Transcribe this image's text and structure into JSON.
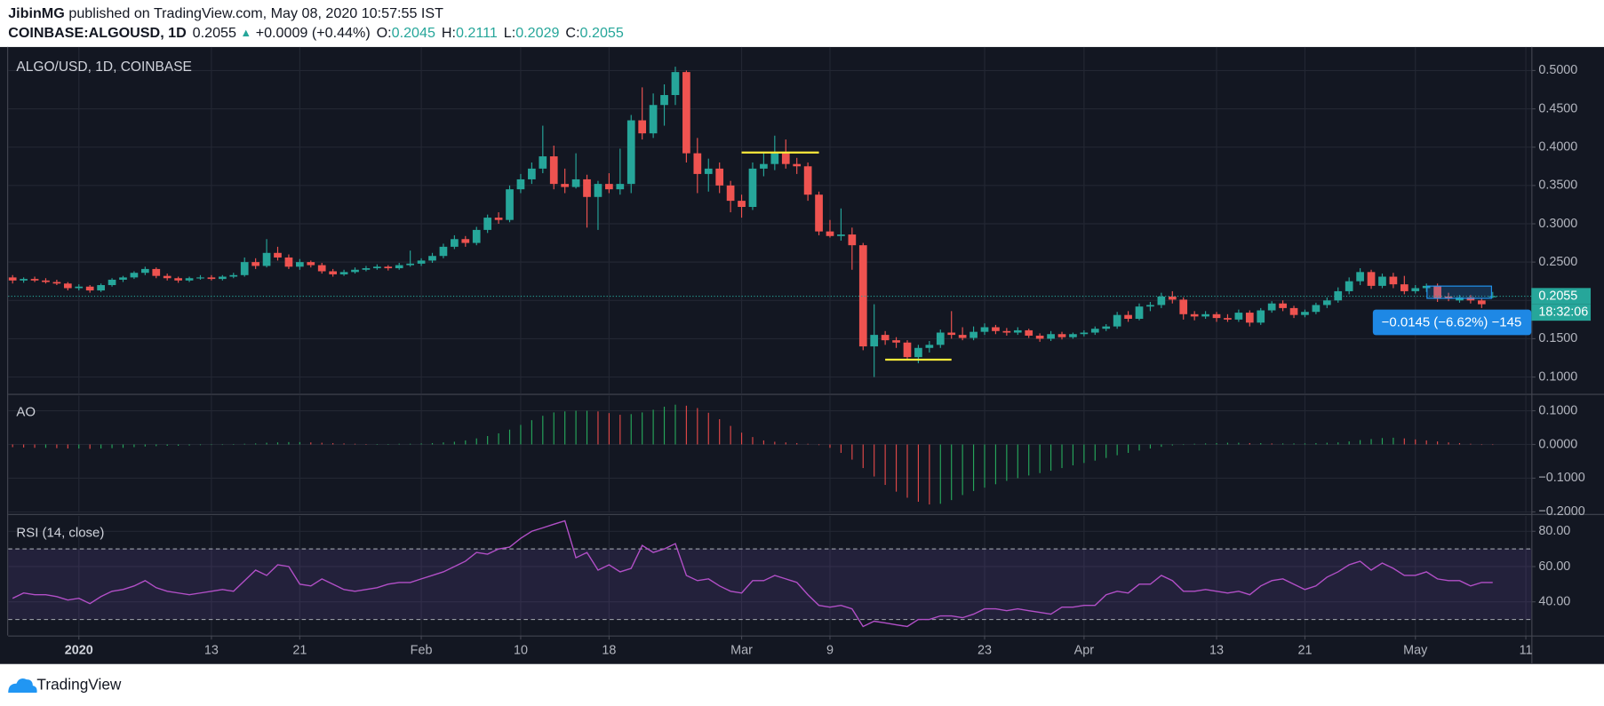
{
  "header": {
    "author": "JibinMG",
    "published": "published on TradingView.com, May 08, 2020 10:57:55 IST",
    "symbol": "COINBASE:ALGOUSD, 1D",
    "arrow": "▲",
    "change": "+0.0009 (+0.44%)",
    "o": "O:",
    "h": "H:",
    "l": "L:",
    "c": "C:"
  },
  "chart_data": [
    {
      "type": "candlestick",
      "title": "ALGO/USD, 1D, COINBASE",
      "up_color": "#26a69a",
      "down_color": "#ef5350",
      "grid": true,
      "candles": [
        [
          0.23,
          0.233,
          0.222,
          0.226
        ],
        [
          0.226,
          0.23,
          0.223,
          0.228
        ],
        [
          0.228,
          0.231,
          0.224,
          0.226
        ],
        [
          0.226,
          0.229,
          0.222,
          0.224
        ],
        [
          0.224,
          0.227,
          0.22,
          0.222
        ],
        [
          0.222,
          0.224,
          0.213,
          0.216
        ],
        [
          0.216,
          0.221,
          0.213,
          0.218
        ],
        [
          0.218,
          0.22,
          0.21,
          0.213
        ],
        [
          0.213,
          0.222,
          0.211,
          0.22
        ],
        [
          0.22,
          0.229,
          0.218,
          0.227
        ],
        [
          0.227,
          0.232,
          0.224,
          0.23
        ],
        [
          0.23,
          0.238,
          0.228,
          0.236
        ],
        [
          0.236,
          0.244,
          0.233,
          0.241
        ],
        [
          0.241,
          0.243,
          0.229,
          0.232
        ],
        [
          0.232,
          0.235,
          0.226,
          0.229
        ],
        [
          0.229,
          0.231,
          0.223,
          0.226
        ],
        [
          0.226,
          0.231,
          0.224,
          0.229
        ],
        [
          0.229,
          0.233,
          0.227,
          0.23
        ],
        [
          0.23,
          0.233,
          0.226,
          0.228
        ],
        [
          0.228,
          0.233,
          0.226,
          0.231
        ],
        [
          0.231,
          0.236,
          0.229,
          0.233
        ],
        [
          0.233,
          0.256,
          0.231,
          0.25
        ],
        [
          0.25,
          0.255,
          0.241,
          0.245
        ],
        [
          0.245,
          0.28,
          0.243,
          0.262
        ],
        [
          0.262,
          0.27,
          0.252,
          0.256
        ],
        [
          0.256,
          0.26,
          0.241,
          0.244
        ],
        [
          0.244,
          0.254,
          0.24,
          0.25
        ],
        [
          0.25,
          0.252,
          0.243,
          0.246
        ],
        [
          0.246,
          0.249,
          0.235,
          0.238
        ],
        [
          0.238,
          0.241,
          0.231,
          0.234
        ],
        [
          0.234,
          0.24,
          0.232,
          0.237
        ],
        [
          0.237,
          0.243,
          0.235,
          0.24
        ],
        [
          0.24,
          0.245,
          0.238,
          0.242
        ],
        [
          0.242,
          0.247,
          0.24,
          0.244
        ],
        [
          0.244,
          0.246,
          0.239,
          0.242
        ],
        [
          0.242,
          0.249,
          0.24,
          0.246
        ],
        [
          0.246,
          0.265,
          0.244,
          0.248
        ],
        [
          0.248,
          0.255,
          0.245,
          0.252
        ],
        [
          0.252,
          0.262,
          0.249,
          0.258
        ],
        [
          0.258,
          0.274,
          0.255,
          0.27
        ],
        [
          0.27,
          0.285,
          0.267,
          0.28
        ],
        [
          0.28,
          0.284,
          0.27,
          0.275
        ],
        [
          0.275,
          0.296,
          0.272,
          0.292
        ],
        [
          0.292,
          0.312,
          0.288,
          0.308
        ],
        [
          0.308,
          0.315,
          0.3,
          0.305
        ],
        [
          0.305,
          0.35,
          0.302,
          0.345
        ],
        [
          0.345,
          0.365,
          0.34,
          0.358
        ],
        [
          0.358,
          0.38,
          0.352,
          0.372
        ],
        [
          0.372,
          0.428,
          0.366,
          0.388
        ],
        [
          0.388,
          0.402,
          0.345,
          0.352
        ],
        [
          0.352,
          0.372,
          0.34,
          0.348
        ],
        [
          0.348,
          0.392,
          0.346,
          0.358
        ],
        [
          0.358,
          0.364,
          0.295,
          0.335
        ],
        [
          0.335,
          0.356,
          0.292,
          0.352
        ],
        [
          0.352,
          0.366,
          0.34,
          0.345
        ],
        [
          0.345,
          0.398,
          0.338,
          0.352
        ],
        [
          0.352,
          0.442,
          0.34,
          0.435
        ],
        [
          0.435,
          0.478,
          0.41,
          0.418
        ],
        [
          0.418,
          0.47,
          0.412,
          0.455
        ],
        [
          0.455,
          0.482,
          0.428,
          0.468
        ],
        [
          0.468,
          0.505,
          0.455,
          0.498
        ],
        [
          0.498,
          0.5,
          0.38,
          0.392
        ],
        [
          0.392,
          0.412,
          0.34,
          0.365
        ],
        [
          0.365,
          0.385,
          0.342,
          0.372
        ],
        [
          0.372,
          0.38,
          0.34,
          0.35
        ],
        [
          0.35,
          0.356,
          0.315,
          0.33
        ],
        [
          0.33,
          0.338,
          0.308,
          0.322
        ],
        [
          0.322,
          0.38,
          0.318,
          0.372
        ],
        [
          0.372,
          0.392,
          0.362,
          0.378
        ],
        [
          0.378,
          0.415,
          0.37,
          0.392
        ],
        [
          0.392,
          0.41,
          0.372,
          0.378
        ],
        [
          0.378,
          0.386,
          0.365,
          0.375
        ],
        [
          0.375,
          0.38,
          0.33,
          0.338
        ],
        [
          0.338,
          0.342,
          0.285,
          0.29
        ],
        [
          0.29,
          0.305,
          0.282,
          0.284
        ],
        [
          0.284,
          0.32,
          0.278,
          0.286
        ],
        [
          0.286,
          0.295,
          0.24,
          0.272
        ],
        [
          0.272,
          0.275,
          0.135,
          0.14
        ],
        [
          0.14,
          0.195,
          0.1,
          0.155
        ],
        [
          0.155,
          0.16,
          0.142,
          0.148
        ],
        [
          0.148,
          0.152,
          0.138,
          0.145
        ],
        [
          0.145,
          0.148,
          0.122,
          0.126
        ],
        [
          0.126,
          0.142,
          0.118,
          0.138
        ],
        [
          0.138,
          0.147,
          0.132,
          0.142
        ],
        [
          0.142,
          0.162,
          0.138,
          0.158
        ],
        [
          0.158,
          0.186,
          0.15,
          0.155
        ],
        [
          0.155,
          0.165,
          0.148,
          0.151
        ],
        [
          0.151,
          0.166,
          0.148,
          0.159
        ],
        [
          0.159,
          0.17,
          0.155,
          0.165
        ],
        [
          0.165,
          0.168,
          0.156,
          0.16
        ],
        [
          0.16,
          0.164,
          0.154,
          0.158
        ],
        [
          0.158,
          0.165,
          0.155,
          0.161
        ],
        [
          0.161,
          0.163,
          0.151,
          0.154
        ],
        [
          0.154,
          0.157,
          0.146,
          0.15
        ],
        [
          0.15,
          0.16,
          0.147,
          0.156
        ],
        [
          0.156,
          0.159,
          0.149,
          0.152
        ],
        [
          0.152,
          0.158,
          0.15,
          0.156
        ],
        [
          0.156,
          0.161,
          0.153,
          0.158
        ],
        [
          0.158,
          0.166,
          0.155,
          0.163
        ],
        [
          0.163,
          0.169,
          0.16,
          0.166
        ],
        [
          0.166,
          0.185,
          0.163,
          0.181
        ],
        [
          0.181,
          0.186,
          0.172,
          0.176
        ],
        [
          0.176,
          0.196,
          0.174,
          0.192
        ],
        [
          0.192,
          0.198,
          0.186,
          0.194
        ],
        [
          0.194,
          0.21,
          0.19,
          0.205
        ],
        [
          0.205,
          0.212,
          0.196,
          0.201
        ],
        [
          0.201,
          0.204,
          0.175,
          0.182
        ],
        [
          0.182,
          0.186,
          0.174,
          0.179
        ],
        [
          0.179,
          0.186,
          0.176,
          0.182
        ],
        [
          0.182,
          0.185,
          0.172,
          0.177
        ],
        [
          0.177,
          0.182,
          0.172,
          0.175
        ],
        [
          0.175,
          0.188,
          0.172,
          0.184
        ],
        [
          0.184,
          0.187,
          0.166,
          0.171
        ],
        [
          0.171,
          0.19,
          0.168,
          0.187
        ],
        [
          0.187,
          0.199,
          0.184,
          0.196
        ],
        [
          0.196,
          0.2,
          0.186,
          0.19
        ],
        [
          0.19,
          0.193,
          0.177,
          0.181
        ],
        [
          0.181,
          0.188,
          0.178,
          0.185
        ],
        [
          0.185,
          0.197,
          0.182,
          0.194
        ],
        [
          0.194,
          0.204,
          0.19,
          0.2
        ],
        [
          0.2,
          0.217,
          0.197,
          0.212
        ],
        [
          0.212,
          0.23,
          0.208,
          0.225
        ],
        [
          0.225,
          0.242,
          0.22,
          0.237
        ],
        [
          0.237,
          0.24,
          0.215,
          0.219
        ],
        [
          0.219,
          0.235,
          0.216,
          0.231
        ],
        [
          0.231,
          0.236,
          0.216,
          0.221
        ],
        [
          0.221,
          0.232,
          0.208,
          0.212
        ],
        [
          0.212,
          0.22,
          0.209,
          0.216
        ],
        [
          0.216,
          0.222,
          0.211,
          0.219
        ],
        [
          0.219,
          0.222,
          0.198,
          0.202
        ],
        [
          0.205,
          0.21,
          0.199,
          0.203
        ],
        [
          0.2,
          0.207,
          0.197,
          0.204
        ],
        [
          0.204,
          0.207,
          0.196,
          0.2
        ],
        [
          0.2,
          0.203,
          0.19,
          0.195
        ],
        [
          0.2045,
          0.2111,
          0.2029,
          0.2055
        ]
      ],
      "ylim": [
        0.0787,
        0.5307
      ],
      "yticks": [
        {
          "value": 0.1,
          "label": "0.1000"
        },
        {
          "value": 0.15,
          "label": "0.1500"
        },
        {
          "value": 0.2,
          "label": "0.2000"
        },
        {
          "value": 0.25,
          "label": "0.2500"
        },
        {
          "value": 0.3,
          "label": "0.3000"
        },
        {
          "value": 0.35,
          "label": "0.3500"
        },
        {
          "value": 0.4,
          "label": "0.4000"
        },
        {
          "value": 0.45,
          "label": "0.4500"
        },
        {
          "value": 0.5,
          "label": "0.5000"
        }
      ],
      "xlim": [
        -0.4,
        137.5
      ],
      "xticks": [
        {
          "value": 6,
          "label": "2020"
        },
        {
          "value": 18,
          "label": "13"
        },
        {
          "value": 26,
          "label": "21"
        },
        {
          "value": 37,
          "label": "Feb"
        },
        {
          "value": 46,
          "label": "10"
        },
        {
          "value": 54,
          "label": "18"
        },
        {
          "value": 66,
          "label": "Mar"
        },
        {
          "value": 74,
          "label": "9"
        },
        {
          "value": 88,
          "label": "23"
        },
        {
          "value": 97,
          "label": "Apr"
        },
        {
          "value": 109,
          "label": "13"
        },
        {
          "value": 117,
          "label": "21"
        },
        {
          "value": 127,
          "label": "May"
        },
        {
          "value": 137,
          "label": "11"
        }
      ],
      "levels": [
        {
          "value": 0.393,
          "from": 66,
          "to": 73
        },
        {
          "value": 0.1227,
          "from": 79,
          "to": 85
        }
      ],
      "level_color": "#ffeb3b",
      "countdown": "18:32:06",
      "measure": "−0.0145 (−6.62%) −145"
    },
    {
      "type": "histogram",
      "title": "AO",
      "up_color": "#26a65b",
      "down_color": "#e04848",
      "grid": true,
      "values": [
        -0.008,
        -0.009,
        -0.01,
        -0.01,
        -0.011,
        -0.012,
        -0.012,
        -0.013,
        -0.012,
        -0.011,
        -0.01,
        -0.008,
        -0.006,
        -0.005,
        -0.004,
        -0.004,
        -0.003,
        -0.002,
        -0.001,
        0.0,
        0.001,
        0.002,
        0.003,
        0.005,
        0.006,
        0.007,
        0.007,
        0.006,
        0.005,
        0.004,
        0.003,
        0.002,
        0.001,
        0.001,
        0.001,
        0.002,
        0.002,
        0.003,
        0.004,
        0.006,
        0.008,
        0.012,
        0.018,
        0.025,
        0.033,
        0.044,
        0.058,
        0.072,
        0.085,
        0.095,
        0.098,
        0.1,
        0.1,
        0.098,
        0.093,
        0.088,
        0.09,
        0.095,
        0.103,
        0.112,
        0.118,
        0.115,
        0.108,
        0.094,
        0.075,
        0.055,
        0.035,
        0.022,
        0.012,
        0.008,
        0.006,
        0.004,
        0.002,
        -0.002,
        -0.01,
        -0.025,
        -0.045,
        -0.07,
        -0.095,
        -0.12,
        -0.14,
        -0.158,
        -0.17,
        -0.178,
        -0.176,
        -0.165,
        -0.15,
        -0.138,
        -0.128,
        -0.118,
        -0.108,
        -0.1,
        -0.092,
        -0.085,
        -0.078,
        -0.07,
        -0.062,
        -0.055,
        -0.048,
        -0.04,
        -0.032,
        -0.025,
        -0.018,
        -0.012,
        -0.007,
        -0.003,
        0.0,
        0.002,
        0.003,
        0.004,
        0.005,
        0.005,
        0.004,
        0.004,
        0.003,
        0.003,
        0.003,
        0.003,
        0.004,
        0.005,
        0.006,
        0.009,
        0.013,
        0.016,
        0.019,
        0.02,
        0.018,
        0.015,
        0.012,
        0.009,
        0.006,
        0.004,
        0.002,
        0.0,
        -0.001
      ],
      "ylim": [
        -0.203,
        0.1455
      ],
      "yticks": [
        {
          "value": 0.1,
          "label": "0.1000"
        },
        {
          "value": 0,
          "label": "0.0000"
        },
        {
          "value": -0.1,
          "label": "−0.1000"
        },
        {
          "value": -0.2,
          "label": "−0.2000"
        }
      ]
    },
    {
      "type": "line",
      "title": "RSI (14, close)",
      "color": "#b24fc7",
      "band_color": "rgba(126,87,194,0.16)",
      "grid": true,
      "values": [
        42,
        45,
        44,
        44,
        43,
        41,
        42,
        39,
        43,
        46,
        47,
        49,
        52,
        48,
        46,
        45,
        44,
        45,
        46,
        47,
        46,
        52,
        58,
        55,
        61,
        60,
        50,
        49,
        53,
        50,
        47,
        46,
        47,
        48,
        50,
        51,
        51,
        53,
        55,
        57,
        60,
        63,
        68,
        67,
        70,
        71,
        76,
        80,
        82,
        84,
        86,
        65,
        68,
        58,
        61,
        57,
        59,
        72,
        68,
        70,
        73,
        55,
        52,
        53,
        49,
        46,
        45,
        52,
        52,
        55,
        53,
        51,
        44,
        38,
        37,
        38,
        36,
        26,
        29,
        28,
        27,
        26,
        30,
        30,
        32,
        32,
        31,
        33,
        36,
        36,
        35,
        36,
        35,
        34,
        33,
        37,
        37,
        38,
        38,
        44,
        46,
        45,
        50,
        50,
        55,
        52,
        46,
        46,
        47,
        46,
        45,
        46,
        44,
        49,
        52,
        53,
        50,
        47,
        49,
        54,
        57,
        61,
        63,
        58,
        62,
        59,
        55,
        55,
        57,
        53,
        52,
        52,
        49,
        51,
        51
      ],
      "bands": [
        30,
        70
      ],
      "ylim": [
        20.9,
        88.7
      ],
      "yticks": [
        {
          "value": 40,
          "label": "40.00"
        },
        {
          "value": 60,
          "label": "60.00"
        },
        {
          "value": 80,
          "label": "80.00"
        }
      ]
    }
  ],
  "footer": {
    "brand": "TradingView"
  }
}
